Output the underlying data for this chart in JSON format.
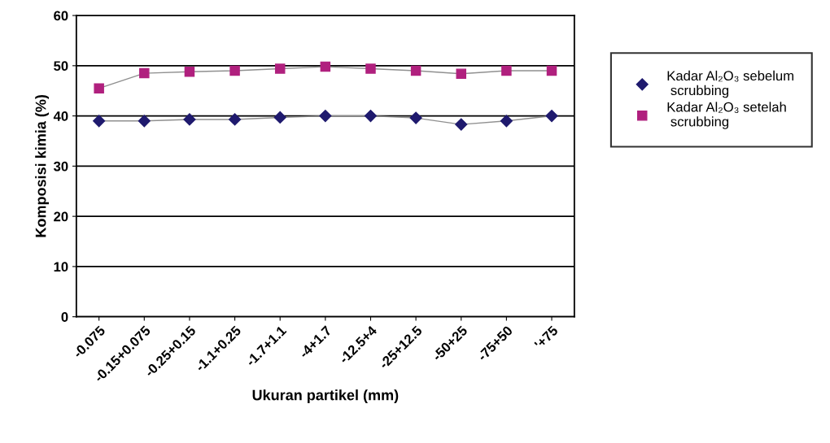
{
  "chart_data": {
    "type": "line",
    "xlabel": "Ukuran partikel (mm)",
    "ylabel": "Komposisi kimia (%)",
    "categories": [
      "-0.075",
      "-0.15+0.075",
      "-0.25+0.15",
      "-1.1+0.25",
      "-1.7+1.1",
      "-4+1.7",
      "-12.5+4",
      "-25+12.5",
      "-50+25",
      "-75+50",
      "'+75"
    ],
    "series": [
      {
        "name": "Kadar Al₂O₃ sebelum scrubbing",
        "color": "#1f1a6e",
        "marker": "diamond",
        "values": [
          39,
          39,
          39.3,
          39.3,
          39.7,
          40,
          40,
          39.6,
          38.3,
          39,
          40
        ]
      },
      {
        "name": "Kadar Al₂O₃ setelah scrubbing",
        "color": "#b0207e",
        "marker": "square",
        "values": [
          45.5,
          48.5,
          48.8,
          49,
          49.4,
          49.8,
          49.4,
          49,
          48.4,
          49,
          49
        ]
      }
    ],
    "ylim": [
      0,
      60
    ],
    "yticks": [
      0,
      10,
      20,
      30,
      40,
      50,
      60
    ],
    "grid": "y",
    "legend": "right"
  }
}
